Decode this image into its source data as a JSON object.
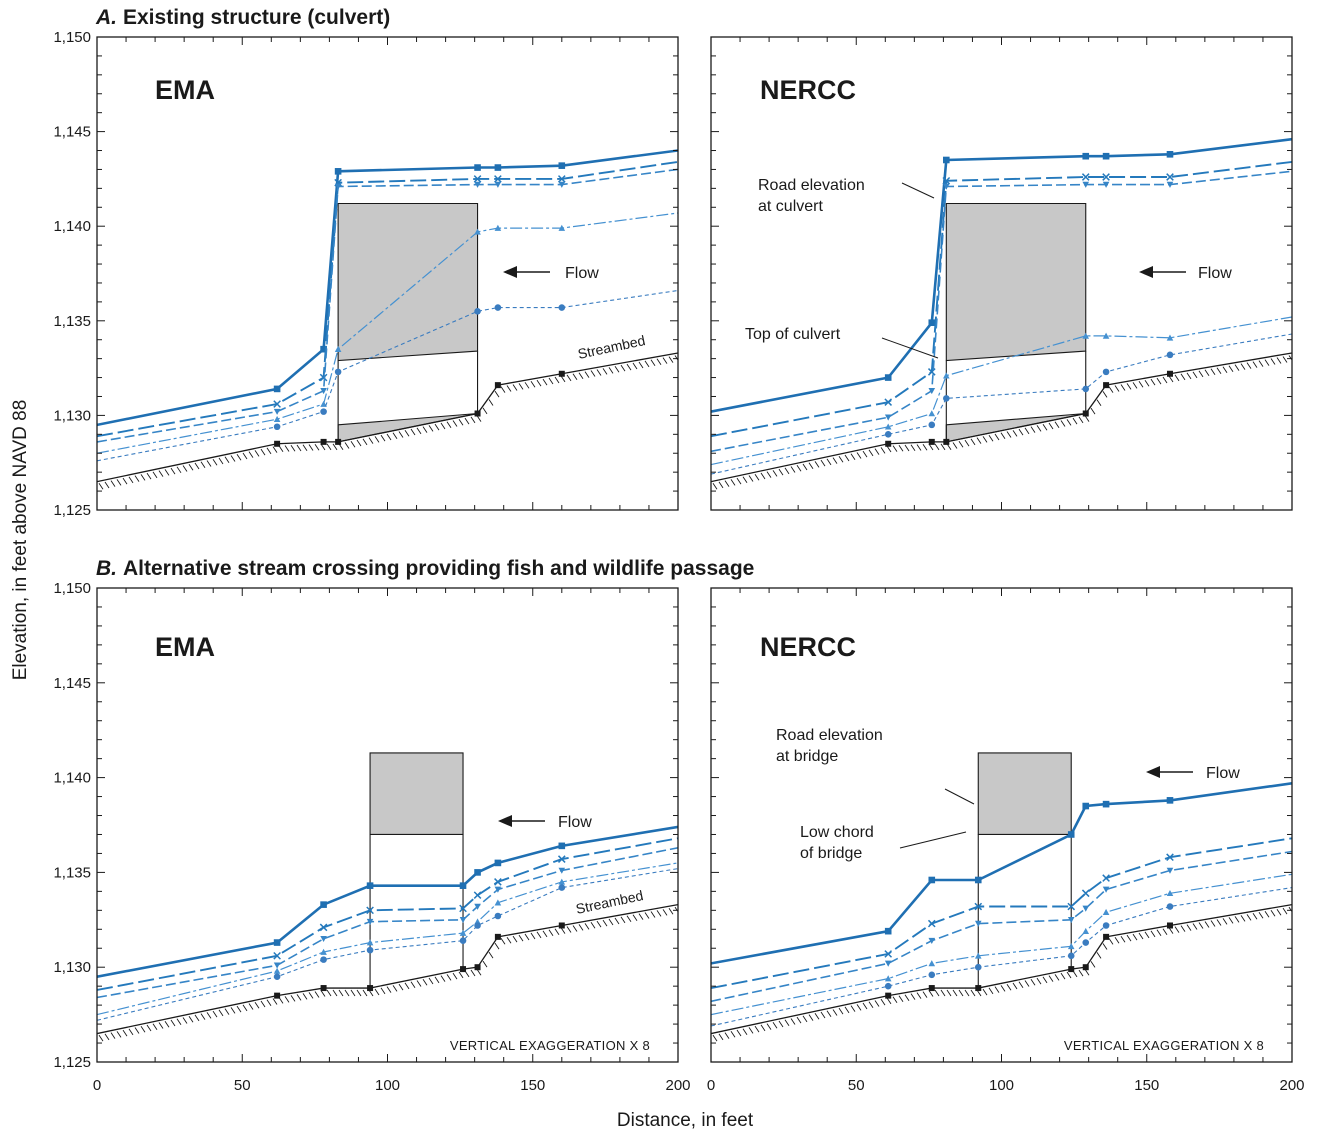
{
  "figure": {
    "y_axis_title": "Elevation, in feet above NAVD 88",
    "x_axis_title": "Distance, in feet",
    "section_a": {
      "letter": "A.",
      "title": "Existing structure (culvert)"
    },
    "section_b": {
      "letter": "B.",
      "title": "Alternative stream crossing providing fish and wildlife passage"
    },
    "x_ticks": [
      "0",
      "50",
      "100",
      "150",
      "200"
    ],
    "y_ticks": [
      "1,125",
      "1,130",
      "1,135",
      "1,140",
      "1,145",
      "1,150"
    ],
    "exaggeration": "VERTICAL EXAGGERATION X 8",
    "colors": {
      "series": [
        "#1f6fb2",
        "#2479bc",
        "#3685c7",
        "#4591d1",
        "#3a7cc0"
      ],
      "structure": "#c8c8c8",
      "ground": "#1a1a1a"
    }
  },
  "annotations": {
    "flow": "Flow",
    "streambed": "Streambed",
    "road_culvert": [
      "Road elevation",
      "at culvert"
    ],
    "top_culvert": "Top of culvert",
    "road_bridge": [
      "Road elevation",
      "at bridge"
    ],
    "low_chord": [
      "Low chord",
      "of bridge"
    ]
  },
  "chart_data": [
    {
      "id": "A-EMA",
      "panel_label": "EMA",
      "type": "line",
      "xlim": [
        0,
        200
      ],
      "ylim": [
        1125,
        1150
      ],
      "structure": {
        "kind": "culvert",
        "x": [
          83,
          131
        ],
        "top": [
          1141.2,
          1141.2
        ],
        "bottom": [
          1132.9,
          1133.4
        ],
        "invert": [
          1129.5,
          1130.1
        ]
      },
      "streambed": {
        "x": [
          0,
          62,
          78,
          83,
          131,
          138,
          160,
          200
        ],
        "y": [
          1126.5,
          1128.5,
          1128.6,
          1128.6,
          1130.1,
          1131.6,
          1132.2,
          1133.3
        ]
      },
      "series": [
        {
          "marker": "square",
          "x": [
            0,
            62,
            78,
            83,
            131,
            138,
            160,
            200
          ],
          "y": [
            1129.5,
            1131.4,
            1133.5,
            1142.9,
            1143.1,
            1143.1,
            1143.2,
            1144.0
          ]
        },
        {
          "marker": "x",
          "x": [
            0,
            62,
            78,
            83,
            131,
            138,
            160,
            200
          ],
          "y": [
            1128.9,
            1130.6,
            1132.0,
            1142.3,
            1142.5,
            1142.5,
            1142.5,
            1143.4
          ]
        },
        {
          "marker": "triangle-down",
          "x": [
            0,
            62,
            78,
            83,
            131,
            138,
            160,
            200
          ],
          "y": [
            1128.6,
            1130.2,
            1131.3,
            1142.1,
            1142.2,
            1142.2,
            1142.2,
            1143.0
          ]
        },
        {
          "marker": "triangle",
          "x": [
            0,
            62,
            78,
            83,
            131,
            138,
            160,
            200
          ],
          "y": [
            1128.0,
            1129.8,
            1130.6,
            1133.5,
            1139.7,
            1139.9,
            1139.9,
            1140.7
          ]
        },
        {
          "marker": "circle",
          "x": [
            0,
            62,
            78,
            83,
            131,
            138,
            160,
            200
          ],
          "y": [
            1127.6,
            1129.4,
            1130.2,
            1132.3,
            1135.5,
            1135.7,
            1135.7,
            1136.6
          ]
        }
      ]
    },
    {
      "id": "A-NERCC",
      "panel_label": "NERCC",
      "type": "line",
      "xlim": [
        0,
        200
      ],
      "ylim": [
        1125,
        1150
      ],
      "structure": {
        "kind": "culvert",
        "x": [
          81,
          129
        ],
        "top": [
          1141.2,
          1141.2
        ],
        "bottom": [
          1132.9,
          1133.4
        ],
        "invert": [
          1129.5,
          1130.1
        ]
      },
      "streambed": {
        "x": [
          0,
          61,
          76,
          81,
          129,
          136,
          158,
          200
        ],
        "y": [
          1126.5,
          1128.5,
          1128.6,
          1128.6,
          1130.1,
          1131.6,
          1132.2,
          1133.3
        ]
      },
      "series": [
        {
          "marker": "square",
          "x": [
            0,
            61,
            76,
            81,
            129,
            136,
            158,
            200
          ],
          "y": [
            1130.2,
            1132.0,
            1134.9,
            1143.5,
            1143.7,
            1143.7,
            1143.8,
            1144.6
          ]
        },
        {
          "marker": "x",
          "x": [
            0,
            61,
            76,
            81,
            129,
            136,
            158,
            200
          ],
          "y": [
            1128.9,
            1130.7,
            1132.3,
            1142.4,
            1142.6,
            1142.6,
            1142.6,
            1143.4
          ]
        },
        {
          "marker": "triangle-down",
          "x": [
            0,
            61,
            76,
            81,
            129,
            136,
            158,
            200
          ],
          "y": [
            1128.1,
            1129.9,
            1131.3,
            1142.1,
            1142.2,
            1142.2,
            1142.2,
            1142.9
          ]
        },
        {
          "marker": "triangle",
          "x": [
            0,
            61,
            76,
            81,
            129,
            136,
            158,
            200
          ],
          "y": [
            1127.4,
            1129.4,
            1130.1,
            1132.1,
            1134.2,
            1134.2,
            1134.1,
            1135.2
          ]
        },
        {
          "marker": "circle",
          "x": [
            0,
            61,
            76,
            81,
            129,
            136,
            158,
            200
          ],
          "y": [
            1126.9,
            1129.0,
            1129.5,
            1130.9,
            1131.4,
            1132.3,
            1133.2,
            1134.3
          ]
        }
      ]
    },
    {
      "id": "B-EMA",
      "panel_label": "EMA",
      "type": "line",
      "xlim": [
        0,
        200
      ],
      "ylim": [
        1125,
        1150
      ],
      "structure": {
        "kind": "bridge",
        "x": [
          94,
          126
        ],
        "top": [
          1141.3,
          1141.3
        ],
        "bottom": [
          1137.0,
          1137.0
        ]
      },
      "streambed": {
        "x": [
          0,
          62,
          78,
          94,
          126,
          131,
          138,
          160,
          200
        ],
        "y": [
          1126.5,
          1128.5,
          1128.9,
          1128.9,
          1129.9,
          1130.0,
          1131.6,
          1132.2,
          1133.3
        ]
      },
      "series": [
        {
          "marker": "square",
          "x": [
            0,
            62,
            78,
            94,
            126,
            131,
            138,
            160,
            200
          ],
          "y": [
            1129.5,
            1131.3,
            1133.3,
            1134.3,
            1134.3,
            1135.0,
            1135.5,
            1136.4,
            1137.4
          ]
        },
        {
          "marker": "x",
          "x": [
            0,
            62,
            78,
            94,
            126,
            131,
            138,
            160,
            200
          ],
          "y": [
            1128.8,
            1130.6,
            1132.1,
            1133.0,
            1133.1,
            1133.8,
            1134.5,
            1135.7,
            1136.8
          ]
        },
        {
          "marker": "triangle-down",
          "x": [
            0,
            62,
            78,
            94,
            126,
            131,
            138,
            160,
            200
          ],
          "y": [
            1128.4,
            1130.1,
            1131.5,
            1132.4,
            1132.5,
            1133.2,
            1134.1,
            1135.1,
            1136.3
          ]
        },
        {
          "marker": "triangle",
          "x": [
            0,
            62,
            78,
            94,
            126,
            131,
            138,
            160,
            200
          ],
          "y": [
            1127.5,
            1129.8,
            1130.8,
            1131.3,
            1131.8,
            1132.4,
            1133.4,
            1134.5,
            1135.5
          ]
        },
        {
          "marker": "circle",
          "x": [
            0,
            62,
            78,
            94,
            126,
            131,
            138,
            160,
            200
          ],
          "y": [
            1127.2,
            1129.5,
            1130.4,
            1130.9,
            1131.4,
            1132.2,
            1132.7,
            1134.2,
            1135.2
          ]
        }
      ]
    },
    {
      "id": "B-NERCC",
      "panel_label": "NERCC",
      "type": "line",
      "xlim": [
        0,
        200
      ],
      "ylim": [
        1125,
        1150
      ],
      "structure": {
        "kind": "bridge",
        "x": [
          92,
          124
        ],
        "top": [
          1141.3,
          1141.3
        ],
        "bottom": [
          1137.0,
          1137.0
        ]
      },
      "streambed": {
        "x": [
          0,
          61,
          76,
          92,
          124,
          129,
          136,
          158,
          200
        ],
        "y": [
          1126.5,
          1128.5,
          1128.9,
          1128.9,
          1129.9,
          1130.0,
          1131.6,
          1132.2,
          1133.3
        ]
      },
      "series": [
        {
          "marker": "square",
          "x": [
            0,
            61,
            76,
            92,
            124,
            129,
            136,
            158,
            200
          ],
          "y": [
            1130.2,
            1131.9,
            1134.6,
            1134.6,
            1137.0,
            1138.5,
            1138.6,
            1138.8,
            1139.7
          ]
        },
        {
          "marker": "x",
          "x": [
            0,
            61,
            76,
            92,
            124,
            129,
            136,
            158,
            200
          ],
          "y": [
            1128.9,
            1130.7,
            1132.3,
            1133.2,
            1133.2,
            1133.9,
            1134.7,
            1135.8,
            1136.8
          ]
        },
        {
          "marker": "triangle-down",
          "x": [
            0,
            61,
            76,
            92,
            124,
            129,
            136,
            158,
            200
          ],
          "y": [
            1128.2,
            1130.2,
            1131.4,
            1132.3,
            1132.5,
            1133.1,
            1134.1,
            1135.1,
            1136.1
          ]
        },
        {
          "marker": "triangle",
          "x": [
            0,
            61,
            76,
            92,
            124,
            129,
            136,
            158,
            200
          ],
          "y": [
            1127.5,
            1129.4,
            1130.2,
            1130.6,
            1131.1,
            1131.9,
            1132.9,
            1133.9,
            1134.9
          ]
        },
        {
          "marker": "circle",
          "x": [
            0,
            61,
            76,
            92,
            124,
            129,
            136,
            158,
            200
          ],
          "y": [
            1126.9,
            1129.0,
            1129.6,
            1130.0,
            1130.6,
            1131.3,
            1132.2,
            1133.2,
            1134.2
          ]
        }
      ]
    }
  ]
}
